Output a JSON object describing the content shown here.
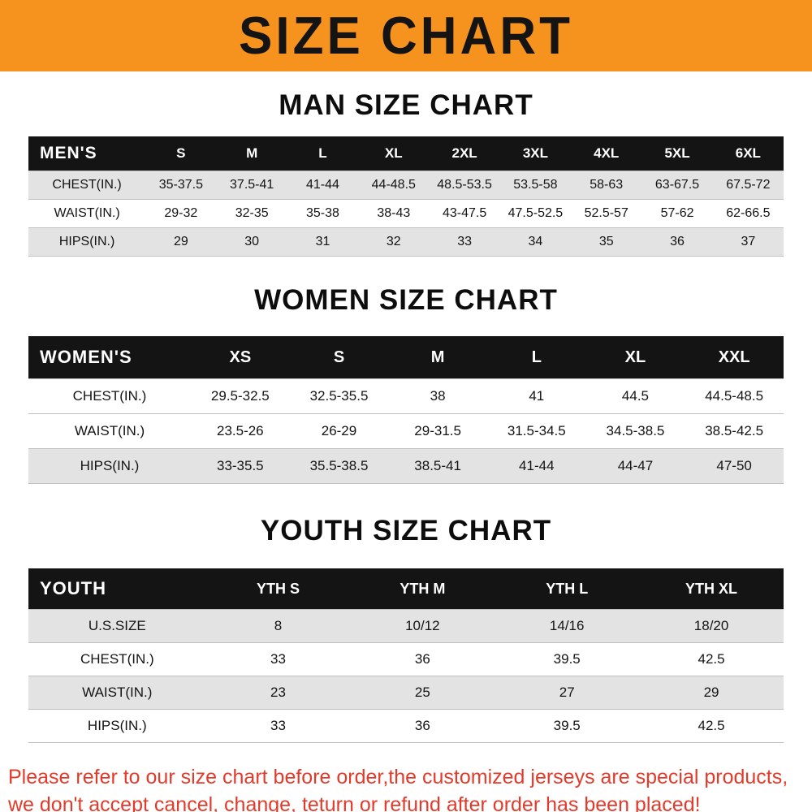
{
  "banner": {
    "title": "SIZE CHART"
  },
  "colors": {
    "banner_bg": "#f6921e",
    "banner_text": "#141414",
    "header_bg": "#141414",
    "row_shade": "#e3e3e3",
    "footer_red": "#e23b2b"
  },
  "man": {
    "heading": "MAN SIZE CHART",
    "table": {
      "header": [
        "MEN'S",
        "S",
        "M",
        "L",
        "XL",
        "2XL",
        "3XL",
        "4XL",
        "5XL",
        "6XL"
      ],
      "rows": [
        [
          "CHEST(IN.)",
          "35-37.5",
          "37.5-41",
          "41-44",
          "44-48.5",
          "48.5-53.5",
          "53.5-58",
          "58-63",
          "63-67.5",
          "67.5-72"
        ],
        [
          "WAIST(IN.)",
          "29-32",
          "32-35",
          "35-38",
          "38-43",
          "43-47.5",
          "47.5-52.5",
          "52.5-57",
          "57-62",
          "62-66.5"
        ],
        [
          "HIPS(IN.)",
          "29",
          "30",
          "31",
          "32",
          "33",
          "34",
          "35",
          "36",
          "37"
        ]
      ]
    }
  },
  "women": {
    "heading": "WOMEN SIZE CHART",
    "table": {
      "header": [
        "WOMEN'S",
        "XS",
        "S",
        "M",
        "L",
        "XL",
        "XXL"
      ],
      "rows": [
        [
          "CHEST(IN.)",
          "29.5-32.5",
          "32.5-35.5",
          "38",
          "41",
          "44.5",
          "44.5-48.5"
        ],
        [
          "WAIST(IN.)",
          "23.5-26",
          "26-29",
          "29-31.5",
          "31.5-34.5",
          "34.5-38.5",
          "38.5-42.5"
        ],
        [
          "HIPS(IN.)",
          "33-35.5",
          "35.5-38.5",
          "38.5-41",
          "41-44",
          "44-47",
          "47-50"
        ]
      ]
    }
  },
  "youth": {
    "heading": "YOUTH SIZE CHART",
    "table": {
      "header": [
        "YOUTH",
        "YTH S",
        "YTH M",
        "YTH L",
        "YTH XL"
      ],
      "rows": [
        [
          "U.S.SIZE",
          "8",
          "10/12",
          "14/16",
          "18/20"
        ],
        [
          "CHEST(IN.)",
          "33",
          "36",
          "39.5",
          "42.5"
        ],
        [
          "WAIST(IN.)",
          "23",
          "25",
          "27",
          "29"
        ],
        [
          "HIPS(IN.)",
          "33",
          "36",
          "39.5",
          "42.5"
        ]
      ]
    }
  },
  "footer": {
    "line1": "Please refer to our size chart before order,the customized jerseys are special products,",
    "line2": "we don't accept cancel, change, teturn or refund after order has been placed!"
  }
}
